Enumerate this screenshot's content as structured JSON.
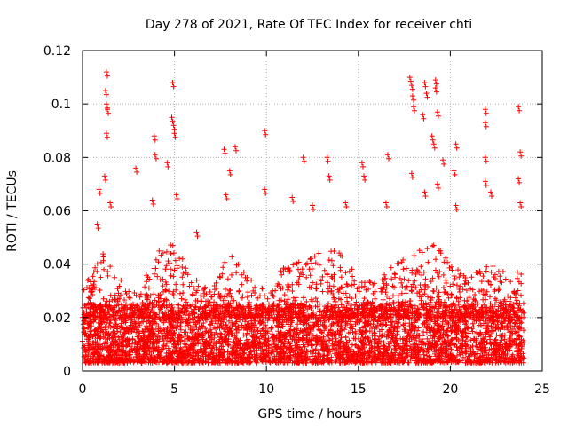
{
  "chart_data": {
    "type": "scatter",
    "title": "Day 278 of 2021, Rate Of TEC Index for receiver chti",
    "xlabel": "GPS time / hours",
    "ylabel": "ROTI / TECUs",
    "xlim": [
      0,
      25
    ],
    "ylim": [
      0,
      0.12
    ],
    "xticks": [
      0,
      5,
      10,
      15,
      20,
      25
    ],
    "xtick_labels": [
      "0",
      "5",
      "10",
      "15",
      "20",
      "25"
    ],
    "yticks": [
      0,
      0.02,
      0.04,
      0.06,
      0.08,
      0.1,
      0.12
    ],
    "ytick_labels": [
      "0",
      "0.02",
      "0.04",
      "0.06",
      "0.08",
      "0.1",
      "0.12"
    ],
    "grid": true,
    "marker": "+",
    "color": "#ff0000",
    "x_range_hours": [
      0,
      24
    ],
    "bulk_range": [
      0.003,
      0.025
    ],
    "series": [
      {
        "name": "ROTI",
        "outliers": [
          {
            "x": 1.3,
            "y": 0.112
          },
          {
            "x": 1.25,
            "y": 0.105
          },
          {
            "x": 1.3,
            "y": 0.1
          },
          {
            "x": 1.35,
            "y": 0.098
          },
          {
            "x": 1.3,
            "y": 0.089
          },
          {
            "x": 1.2,
            "y": 0.073
          },
          {
            "x": 0.9,
            "y": 0.068
          },
          {
            "x": 1.5,
            "y": 0.063
          },
          {
            "x": 0.8,
            "y": 0.055
          },
          {
            "x": 2.9,
            "y": 0.076
          },
          {
            "x": 3.9,
            "y": 0.088
          },
          {
            "x": 3.95,
            "y": 0.081
          },
          {
            "x": 4.9,
            "y": 0.108
          },
          {
            "x": 4.85,
            "y": 0.095
          },
          {
            "x": 4.95,
            "y": 0.092
          },
          {
            "x": 5.0,
            "y": 0.089
          },
          {
            "x": 4.6,
            "y": 0.078
          },
          {
            "x": 5.1,
            "y": 0.066
          },
          {
            "x": 3.8,
            "y": 0.064
          },
          {
            "x": 6.2,
            "y": 0.052
          },
          {
            "x": 7.7,
            "y": 0.083
          },
          {
            "x": 8.3,
            "y": 0.084
          },
          {
            "x": 8.0,
            "y": 0.075
          },
          {
            "x": 7.8,
            "y": 0.066
          },
          {
            "x": 9.9,
            "y": 0.09
          },
          {
            "x": 9.9,
            "y": 0.068
          },
          {
            "x": 12.0,
            "y": 0.08
          },
          {
            "x": 11.4,
            "y": 0.065
          },
          {
            "x": 13.3,
            "y": 0.08
          },
          {
            "x": 13.4,
            "y": 0.073
          },
          {
            "x": 12.5,
            "y": 0.062
          },
          {
            "x": 15.2,
            "y": 0.078
          },
          {
            "x": 15.3,
            "y": 0.073
          },
          {
            "x": 16.6,
            "y": 0.081
          },
          {
            "x": 16.5,
            "y": 0.063
          },
          {
            "x": 17.8,
            "y": 0.11
          },
          {
            "x": 17.9,
            "y": 0.107
          },
          {
            "x": 17.95,
            "y": 0.103
          },
          {
            "x": 18.0,
            "y": 0.099
          },
          {
            "x": 18.6,
            "y": 0.108
          },
          {
            "x": 18.7,
            "y": 0.104
          },
          {
            "x": 19.2,
            "y": 0.109
          },
          {
            "x": 19.2,
            "y": 0.106
          },
          {
            "x": 19.3,
            "y": 0.097
          },
          {
            "x": 18.5,
            "y": 0.096
          },
          {
            "x": 19.0,
            "y": 0.088
          },
          {
            "x": 19.1,
            "y": 0.085
          },
          {
            "x": 19.6,
            "y": 0.079
          },
          {
            "x": 20.3,
            "y": 0.085
          },
          {
            "x": 20.2,
            "y": 0.075
          },
          {
            "x": 17.9,
            "y": 0.074
          },
          {
            "x": 18.6,
            "y": 0.067
          },
          {
            "x": 19.3,
            "y": 0.07
          },
          {
            "x": 21.9,
            "y": 0.098
          },
          {
            "x": 21.9,
            "y": 0.093
          },
          {
            "x": 21.9,
            "y": 0.08
          },
          {
            "x": 21.9,
            "y": 0.071
          },
          {
            "x": 22.2,
            "y": 0.067
          },
          {
            "x": 23.7,
            "y": 0.099
          },
          {
            "x": 23.8,
            "y": 0.082
          },
          {
            "x": 23.7,
            "y": 0.072
          },
          {
            "x": 23.8,
            "y": 0.063
          },
          {
            "x": 20.3,
            "y": 0.062
          },
          {
            "x": 14.3,
            "y": 0.063
          }
        ],
        "activity_envelope": [
          {
            "x": 0.0,
            "y": 0.03
          },
          {
            "x": 1.0,
            "y": 0.045
          },
          {
            "x": 2.0,
            "y": 0.035
          },
          {
            "x": 3.0,
            "y": 0.028
          },
          {
            "x": 4.0,
            "y": 0.045
          },
          {
            "x": 5.0,
            "y": 0.05
          },
          {
            "x": 6.0,
            "y": 0.035
          },
          {
            "x": 7.0,
            "y": 0.03
          },
          {
            "x": 8.0,
            "y": 0.045
          },
          {
            "x": 9.0,
            "y": 0.035
          },
          {
            "x": 10.0,
            "y": 0.03
          },
          {
            "x": 11.0,
            "y": 0.04
          },
          {
            "x": 12.0,
            "y": 0.042
          },
          {
            "x": 13.0,
            "y": 0.045
          },
          {
            "x": 14.0,
            "y": 0.045
          },
          {
            "x": 15.0,
            "y": 0.035
          },
          {
            "x": 16.0,
            "y": 0.035
          },
          {
            "x": 17.0,
            "y": 0.04
          },
          {
            "x": 18.0,
            "y": 0.045
          },
          {
            "x": 19.0,
            "y": 0.05
          },
          {
            "x": 20.0,
            "y": 0.04
          },
          {
            "x": 21.0,
            "y": 0.035
          },
          {
            "x": 22.0,
            "y": 0.04
          },
          {
            "x": 23.0,
            "y": 0.038
          },
          {
            "x": 24.0,
            "y": 0.04
          }
        ]
      }
    ]
  }
}
